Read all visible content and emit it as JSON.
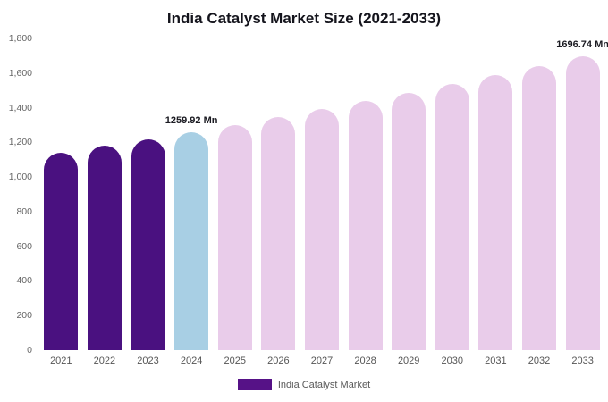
{
  "chart_data": {
    "type": "bar",
    "title": "India Catalyst Market Size (2021-2033)",
    "categories": [
      "2021",
      "2022",
      "2023",
      "2024",
      "2025",
      "2026",
      "2027",
      "2028",
      "2029",
      "2030",
      "2031",
      "2032",
      "2033"
    ],
    "values": [
      1141,
      1180,
      1219,
      1259.92,
      1302,
      1346,
      1391,
      1438,
      1487,
      1537,
      1588,
      1642,
      1696.74
    ],
    "unit": "Mn",
    "ylim": [
      0,
      1800
    ],
    "y_ticks": [
      {
        "value": 0,
        "label": "0"
      },
      {
        "value": 200,
        "label": "200"
      },
      {
        "value": 400,
        "label": "400"
      },
      {
        "value": 600,
        "label": "600"
      },
      {
        "value": 800,
        "label": "800"
      },
      {
        "value": 1000,
        "label": "1,000"
      },
      {
        "value": 1200,
        "label": "1,200"
      },
      {
        "value": 1400,
        "label": "1,400"
      },
      {
        "value": 1600,
        "label": "1,600"
      },
      {
        "value": 1800,
        "label": "1,800"
      }
    ],
    "bar_roles": [
      "historical",
      "historical",
      "historical",
      "current",
      "forecast",
      "forecast",
      "forecast",
      "forecast",
      "forecast",
      "forecast",
      "forecast",
      "forecast",
      "forecast"
    ],
    "colors": {
      "historical": "#4a1180",
      "current": "#a8cfe4",
      "forecast": "#e9ccea"
    },
    "annotations": [
      {
        "index": 3,
        "text": "1259.92 Mn"
      },
      {
        "index": 12,
        "text": "1696.74 Mn"
      }
    ],
    "legend": [
      {
        "label": "India Catalyst Market",
        "color": "#561287"
      }
    ],
    "grid": false,
    "legend_position": "bottom-center"
  }
}
